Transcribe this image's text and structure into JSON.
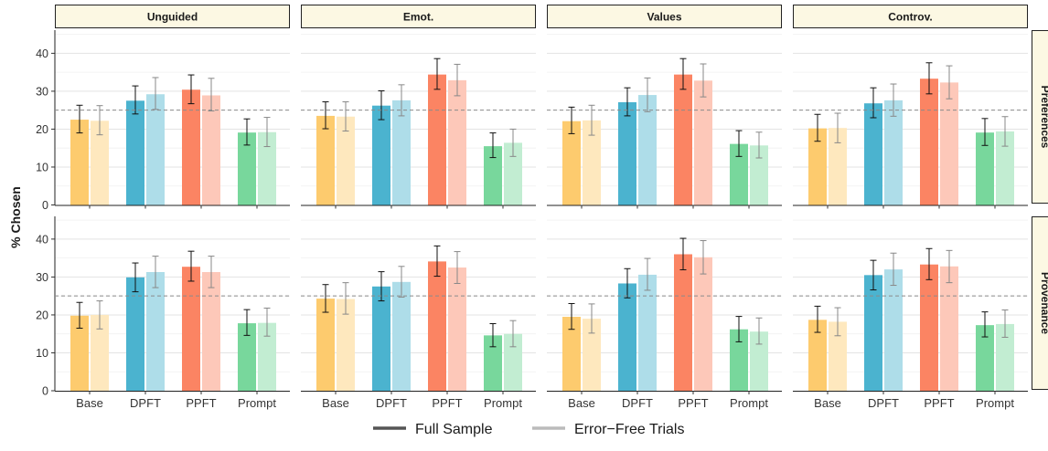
{
  "chart_data": {
    "type": "bar",
    "ylabel": "% Chosen",
    "ylim": [
      0,
      45
    ],
    "yticks": [
      0,
      10,
      20,
      30,
      40
    ],
    "reference_line": 25,
    "categories": [
      "Base",
      "DPFT",
      "PPFT",
      "Prompt"
    ],
    "category_colors": [
      "#FDCB6E",
      "#4BB3CF",
      "#FB8463",
      "#78D79C"
    ],
    "columns": [
      "Unguided",
      "Emot.",
      "Values",
      "Controv."
    ],
    "rows": [
      "Preferences",
      "Provenance"
    ],
    "legend": {
      "position": "bottom",
      "entries": [
        {
          "label": "Full Sample",
          "color": "#555555"
        },
        {
          "label": "Error−Free Trials",
          "color": "#BBBBBB"
        }
      ]
    },
    "series": [
      {
        "name": "Full Sample"
      },
      {
        "name": "Error−Free Trials"
      }
    ],
    "panels": [
      {
        "row": "Preferences",
        "column": "Unguided",
        "full": [
          22.5,
          27.5,
          30.4,
          19.1
        ],
        "full_err": [
          [
            19.0,
            26.3
          ],
          [
            24.0,
            31.4
          ],
          [
            26.7,
            34.3
          ],
          [
            15.8,
            22.7
          ]
        ],
        "error_free": [
          22.2,
          29.2,
          28.9,
          19.2
        ],
        "error_free_err": [
          [
            18.5,
            26.2
          ],
          [
            25.2,
            33.6
          ],
          [
            24.8,
            33.4
          ],
          [
            15.4,
            23.1
          ]
        ]
      },
      {
        "row": "Preferences",
        "column": "Emot.",
        "full": [
          23.5,
          26.2,
          34.4,
          15.5
        ],
        "full_err": [
          [
            20.1,
            27.2
          ],
          [
            22.5,
            30.1
          ],
          [
            30.5,
            38.6
          ],
          [
            12.5,
            19.0
          ]
        ],
        "error_free": [
          23.3,
          27.6,
          32.9,
          16.4
        ],
        "error_free_err": [
          [
            19.5,
            27.2
          ],
          [
            23.5,
            31.7
          ],
          [
            28.8,
            37.1
          ],
          [
            12.8,
            20.0
          ]
        ]
      },
      {
        "row": "Preferences",
        "column": "Values",
        "full": [
          22.1,
          27.1,
          34.4,
          16.1
        ],
        "full_err": [
          [
            18.8,
            25.8
          ],
          [
            23.5,
            30.9
          ],
          [
            30.5,
            38.6
          ],
          [
            12.8,
            19.6
          ]
        ],
        "error_free": [
          22.3,
          29.0,
          32.8,
          15.7
        ],
        "error_free_err": [
          [
            18.4,
            26.3
          ],
          [
            24.6,
            33.5
          ],
          [
            28.5,
            37.2
          ],
          [
            12.4,
            19.2
          ]
        ]
      },
      {
        "row": "Preferences",
        "column": "Controv.",
        "full": [
          20.2,
          26.8,
          33.3,
          19.1
        ],
        "full_err": [
          [
            16.8,
            23.9
          ],
          [
            23.0,
            30.9
          ],
          [
            29.3,
            37.5
          ],
          [
            15.7,
            22.8
          ]
        ],
        "error_free": [
          20.3,
          27.6,
          32.3,
          19.4
        ],
        "error_free_err": [
          [
            16.4,
            24.2
          ],
          [
            23.4,
            31.9
          ],
          [
            28.0,
            36.7
          ],
          [
            15.5,
            23.3
          ]
        ]
      },
      {
        "row": "Provenance",
        "column": "Unguided",
        "full": [
          19.8,
          29.9,
          32.7,
          17.8
        ],
        "full_err": [
          [
            16.5,
            23.3
          ],
          [
            26.1,
            33.7
          ],
          [
            28.9,
            36.8
          ],
          [
            14.6,
            21.4
          ]
        ],
        "error_free": [
          20.0,
          31.3,
          31.3,
          17.9
        ],
        "error_free_err": [
          [
            16.3,
            23.7
          ],
          [
            27.2,
            35.5
          ],
          [
            27.2,
            35.5
          ],
          [
            14.4,
            21.8
          ]
        ]
      },
      {
        "row": "Provenance",
        "column": "Emot.",
        "full": [
          24.3,
          27.5,
          34.1,
          14.6
        ],
        "full_err": [
          [
            20.7,
            28.0
          ],
          [
            23.7,
            31.4
          ],
          [
            30.2,
            38.2
          ],
          [
            11.6,
            17.7
          ]
        ],
        "error_free": [
          24.2,
          28.7,
          32.5,
          15.0
        ],
        "error_free_err": [
          [
            20.2,
            28.5
          ],
          [
            24.7,
            32.8
          ],
          [
            28.3,
            36.7
          ],
          [
            11.6,
            18.5
          ]
        ]
      },
      {
        "row": "Provenance",
        "column": "Values",
        "full": [
          19.5,
          28.3,
          36.0,
          16.2
        ],
        "full_err": [
          [
            16.2,
            23.0
          ],
          [
            24.5,
            32.2
          ],
          [
            31.9,
            40.2
          ],
          [
            12.9,
            19.6
          ]
        ],
        "error_free": [
          19.0,
          30.6,
          35.2,
          15.6
        ],
        "error_free_err": [
          [
            15.2,
            22.9
          ],
          [
            26.5,
            34.9
          ],
          [
            30.8,
            39.6
          ],
          [
            12.3,
            19.2
          ]
        ]
      },
      {
        "row": "Provenance",
        "column": "Controv.",
        "full": [
          18.7,
          30.5,
          33.3,
          17.3
        ],
        "full_err": [
          [
            15.4,
            22.3
          ],
          [
            26.6,
            34.4
          ],
          [
            29.3,
            37.5
          ],
          [
            14.2,
            20.8
          ]
        ],
        "error_free": [
          18.2,
          32.0,
          32.8,
          17.6
        ],
        "error_free_err": [
          [
            14.5,
            21.9
          ],
          [
            27.8,
            36.3
          ],
          [
            28.5,
            37.0
          ],
          [
            14.1,
            21.3
          ]
        ]
      }
    ]
  }
}
